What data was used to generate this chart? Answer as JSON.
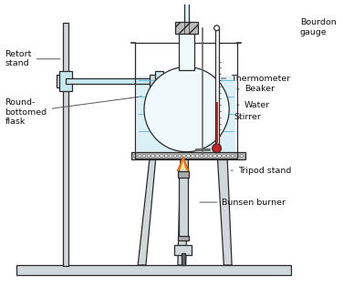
{
  "bg_color": "#ffffff",
  "line_color": "#2a2a2a",
  "light_blue": "#c8e8f0",
  "light_gray": "#d0d8dc",
  "gray": "#aaaaaa",
  "dark_gray": "#666666",
  "labels": {
    "bourdon_gauge": "Bourdon\ngauge",
    "thermometer": "Thermometer",
    "beaker": "Beaker",
    "water": "Water",
    "stirrer": "Stirrer",
    "tripod_stand": "Tripod stand",
    "bunsen_burner": "Bunsen burner",
    "retort_stand": "Retort\nstand",
    "round_bottomed_flask": "Round-\nbottomed\nflask"
  }
}
